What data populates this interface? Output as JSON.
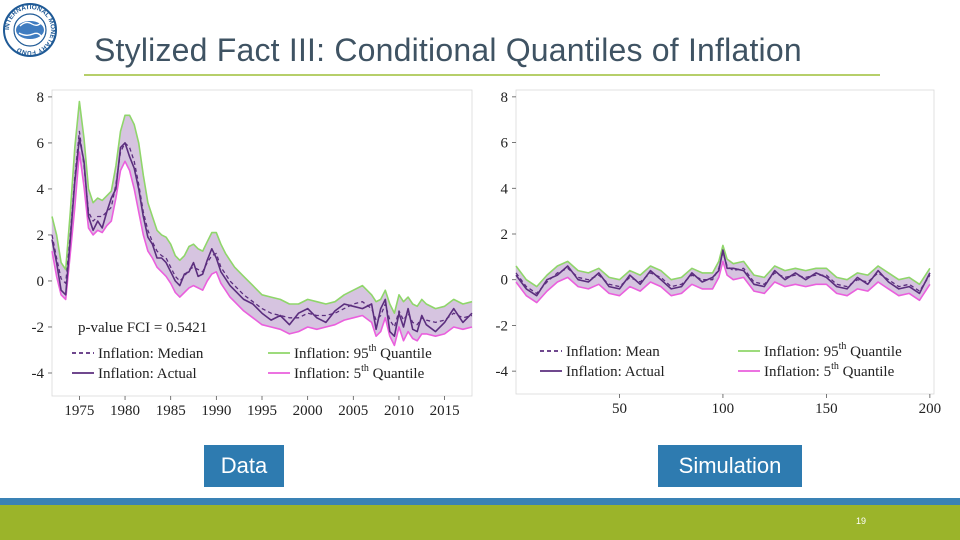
{
  "slide": {
    "title": "Stylized Fact III: Conditional Quantiles of Inflation",
    "page_number": "19",
    "captions": {
      "left": "Data",
      "right": "Simulation"
    },
    "colors": {
      "title": "#3f5363",
      "rule": "#b6cf6a",
      "caption_bg": "#2e7bb0",
      "footer_blue": "#3a82b5",
      "footer_green": "#9bb42a"
    }
  },
  "logo": {
    "text": "INTERNATIONAL MONETARY FUND"
  },
  "chart_data": [
    {
      "type": "line",
      "title": "Data",
      "xlim": [
        1972,
        2018
      ],
      "ylim": [
        -5,
        8.3
      ],
      "yticks": [
        8,
        6,
        4,
        2,
        0,
        -2,
        -4
      ],
      "xticks": [
        1975,
        1980,
        1985,
        1990,
        1995,
        2000,
        2005,
        2010,
        2015
      ],
      "annotation": "p-value FCI = 0.5421",
      "legend": [
        {
          "label": "Inflation: Median",
          "style": "dashed",
          "color": "#5b2e7e"
        },
        {
          "label": "Inflation: Actual",
          "style": "solid",
          "color": "#5b2e7e"
        },
        {
          "label": "Inflation: 95",
          "sup": "th",
          "suffix": " Quantile",
          "style": "solid",
          "color": "#8fd66a"
        },
        {
          "label": "Inflation: 5",
          "sup": "th",
          "suffix": " Quantile",
          "style": "solid",
          "color": "#ea5fdd"
        }
      ],
      "x": [
        1972,
        1972.5,
        1973,
        1973.5,
        1974,
        1974.5,
        1975,
        1975.5,
        1976,
        1976.5,
        1977,
        1977.5,
        1978,
        1978.5,
        1979,
        1979.5,
        1980,
        1980.5,
        1981,
        1981.5,
        1982,
        1982.5,
        1983,
        1983.5,
        1984,
        1984.5,
        1985,
        1985.5,
        1986,
        1986.5,
        1987,
        1987.5,
        1988,
        1988.5,
        1989,
        1989.5,
        1990,
        1990.5,
        1991,
        1991.5,
        1992,
        1993,
        1994,
        1995,
        1996,
        1997,
        1998,
        1999,
        2000,
        2001,
        2002,
        2003,
        2004,
        2005,
        2006,
        2007,
        2007.5,
        2008,
        2008.5,
        2009,
        2009.5,
        2010,
        2010.5,
        2011,
        2011.5,
        2012,
        2012.5,
        2013,
        2014,
        2015,
        2016,
        2017,
        2018
      ],
      "series": [
        {
          "name": "Inflation: 95th Quantile",
          "values": [
            2.8,
            2.0,
            0.8,
            0.5,
            3.0,
            5.8,
            7.8,
            6.2,
            4.0,
            3.4,
            3.6,
            3.5,
            3.7,
            3.9,
            5.0,
            6.5,
            7.2,
            7.2,
            6.8,
            6.0,
            4.6,
            3.4,
            2.8,
            2.2,
            2.0,
            1.9,
            1.6,
            1.1,
            0.9,
            1.1,
            1.5,
            1.6,
            1.4,
            1.3,
            1.7,
            2.1,
            2.1,
            1.6,
            1.2,
            0.9,
            0.6,
            0.2,
            -0.2,
            -0.6,
            -0.7,
            -0.8,
            -1.0,
            -1.0,
            -0.8,
            -0.9,
            -1.0,
            -0.9,
            -0.6,
            -0.4,
            -0.2,
            -0.6,
            -0.9,
            -0.8,
            -0.4,
            -1.0,
            -1.4,
            -0.6,
            -0.9,
            -0.7,
            -1.0,
            -1.1,
            -0.8,
            -1.0,
            -1.2,
            -1.1,
            -0.8,
            -1.0,
            -0.9
          ]
        },
        {
          "name": "Inflation: 5th Quantile",
          "values": [
            1.3,
            0.2,
            -0.6,
            -0.8,
            1.2,
            3.2,
            5.6,
            4.1,
            2.3,
            2.0,
            2.2,
            2.1,
            2.4,
            2.6,
            3.6,
            4.8,
            5.2,
            4.8,
            4.0,
            3.0,
            2.0,
            1.3,
            1.0,
            0.6,
            0.4,
            0.2,
            -0.1,
            -0.5,
            -0.7,
            -0.5,
            -0.3,
            -0.2,
            -0.3,
            -0.4,
            0.0,
            0.3,
            0.4,
            -0.1,
            -0.4,
            -0.7,
            -0.9,
            -1.3,
            -1.6,
            -1.9,
            -2.0,
            -2.1,
            -2.3,
            -2.2,
            -2.0,
            -2.1,
            -2.0,
            -1.9,
            -1.7,
            -1.6,
            -1.5,
            -1.8,
            -2.4,
            -2.2,
            -1.6,
            -2.4,
            -2.8,
            -2.0,
            -2.6,
            -2.2,
            -2.5,
            -2.6,
            -2.3,
            -2.3,
            -2.4,
            -2.3,
            -2.0,
            -2.1,
            -2.0
          ]
        },
        {
          "name": "Inflation: Median",
          "values": [
            2.0,
            1.0,
            0.1,
            -0.1,
            2.0,
            4.5,
            6.5,
            5.0,
            3.0,
            2.6,
            2.8,
            2.8,
            3.0,
            3.2,
            4.2,
            5.6,
            6.0,
            5.8,
            5.2,
            4.2,
            3.0,
            2.2,
            1.7,
            1.3,
            1.1,
            1.0,
            0.6,
            0.2,
            0.0,
            0.2,
            0.5,
            0.6,
            0.5,
            0.4,
            0.8,
            1.1,
            1.2,
            0.6,
            0.3,
            0.0,
            -0.2,
            -0.6,
            -0.9,
            -1.2,
            -1.4,
            -1.5,
            -1.6,
            -1.6,
            -1.4,
            -1.5,
            -1.5,
            -1.4,
            -1.2,
            -1.0,
            -0.9,
            -1.2,
            -1.7,
            -1.5,
            -1.0,
            -1.7,
            -2.0,
            -1.3,
            -1.7,
            -1.4,
            -1.8,
            -1.9,
            -1.6,
            -1.7,
            -1.8,
            -1.7,
            -1.4,
            -1.6,
            -1.5
          ]
        },
        {
          "name": "Inflation: Actual",
          "values": [
            1.8,
            0.8,
            -0.4,
            -0.6,
            1.8,
            4.3,
            6.2,
            5.2,
            2.8,
            2.2,
            2.6,
            2.3,
            3.0,
            3.6,
            4.0,
            5.8,
            6.0,
            5.4,
            4.9,
            4.0,
            2.8,
            1.9,
            1.6,
            1.0,
            1.0,
            0.8,
            0.4,
            0.0,
            -0.2,
            0.3,
            0.4,
            0.8,
            0.2,
            0.3,
            0.9,
            1.4,
            1.0,
            0.4,
            0.1,
            -0.2,
            -0.4,
            -0.8,
            -1.0,
            -1.4,
            -1.7,
            -1.5,
            -1.9,
            -1.4,
            -1.2,
            -1.6,
            -1.8,
            -1.3,
            -1.0,
            -1.1,
            -1.2,
            -1.0,
            -2.1,
            -1.2,
            -0.8,
            -2.2,
            -2.4,
            -1.4,
            -2.0,
            -1.2,
            -2.1,
            -2.2,
            -1.5,
            -1.9,
            -2.2,
            -1.8,
            -1.2,
            -1.8,
            -1.4
          ]
        }
      ]
    },
    {
      "type": "line",
      "title": "Simulation",
      "xlim": [
        0,
        202
      ],
      "ylim": [
        -5,
        8.3
      ],
      "yticks": [
        8,
        6,
        4,
        2,
        0,
        -2,
        -4
      ],
      "xticks": [
        50,
        100,
        150,
        200
      ],
      "legend": [
        {
          "label": "Inflation: Mean",
          "style": "dashed",
          "color": "#5b2e7e"
        },
        {
          "label": "Inflation: Actual",
          "style": "solid",
          "color": "#5b2e7e"
        },
        {
          "label": "Inflation: 95",
          "sup": "th",
          "suffix": " Quantile",
          "style": "solid",
          "color": "#8fd66a"
        },
        {
          "label": "Inflation: 5",
          "sup": "th",
          "suffix": " Quantile",
          "style": "solid",
          "color": "#ea5fdd"
        }
      ],
      "x": [
        0,
        5,
        10,
        15,
        20,
        25,
        30,
        35,
        40,
        45,
        50,
        55,
        60,
        65,
        70,
        75,
        80,
        85,
        90,
        95,
        98,
        100,
        102,
        105,
        110,
        115,
        120,
        125,
        130,
        135,
        140,
        145,
        150,
        155,
        160,
        165,
        170,
        175,
        180,
        185,
        190,
        195,
        200
      ],
      "series": [
        {
          "name": "Inflation: 95th Quantile",
          "values": [
            0.6,
            0.0,
            -0.3,
            0.2,
            0.6,
            0.8,
            0.4,
            0.3,
            0.5,
            0.1,
            0.0,
            0.4,
            0.2,
            0.6,
            0.4,
            0.0,
            0.1,
            0.5,
            0.3,
            0.3,
            0.8,
            1.5,
            0.9,
            0.7,
            0.8,
            0.2,
            0.1,
            0.6,
            0.4,
            0.5,
            0.4,
            0.5,
            0.5,
            0.1,
            0.0,
            0.3,
            0.2,
            0.6,
            0.3,
            0.0,
            0.1,
            -0.2,
            0.5
          ]
        },
        {
          "name": "Inflation: 5th Quantile",
          "values": [
            -0.1,
            -0.7,
            -1.0,
            -0.5,
            -0.1,
            0.1,
            -0.3,
            -0.4,
            -0.2,
            -0.6,
            -0.7,
            -0.3,
            -0.5,
            -0.1,
            -0.3,
            -0.7,
            -0.6,
            -0.2,
            -0.4,
            -0.4,
            0.1,
            0.8,
            0.2,
            0.0,
            0.1,
            -0.5,
            -0.6,
            -0.1,
            -0.3,
            -0.2,
            -0.3,
            -0.2,
            -0.2,
            -0.6,
            -0.7,
            -0.4,
            -0.5,
            -0.1,
            -0.4,
            -0.7,
            -0.6,
            -0.9,
            -0.2
          ]
        },
        {
          "name": "Inflation: Mean",
          "values": [
            0.3,
            -0.3,
            -0.6,
            -0.1,
            0.3,
            0.5,
            0.1,
            0.0,
            0.2,
            -0.2,
            -0.3,
            0.1,
            -0.1,
            0.3,
            0.1,
            -0.3,
            -0.2,
            0.2,
            0.0,
            0.0,
            0.5,
            1.2,
            0.6,
            0.4,
            0.5,
            -0.1,
            -0.2,
            0.3,
            0.1,
            0.2,
            0.1,
            0.2,
            0.2,
            -0.2,
            -0.3,
            0.0,
            -0.1,
            0.3,
            0.0,
            -0.3,
            -0.2,
            -0.5,
            0.2
          ]
        },
        {
          "name": "Inflation: Actual",
          "values": [
            0.2,
            -0.4,
            -0.7,
            0.0,
            0.2,
            0.6,
            0.0,
            -0.1,
            0.3,
            -0.3,
            -0.4,
            0.2,
            -0.2,
            0.4,
            0.0,
            -0.4,
            -0.3,
            0.3,
            -0.1,
            0.1,
            0.4,
            1.3,
            0.5,
            0.5,
            0.4,
            -0.2,
            -0.3,
            0.4,
            0.0,
            0.3,
            0.0,
            0.3,
            0.1,
            -0.3,
            -0.4,
            0.1,
            -0.2,
            0.4,
            -0.1,
            -0.4,
            -0.3,
            -0.6,
            0.3
          ]
        }
      ]
    }
  ]
}
